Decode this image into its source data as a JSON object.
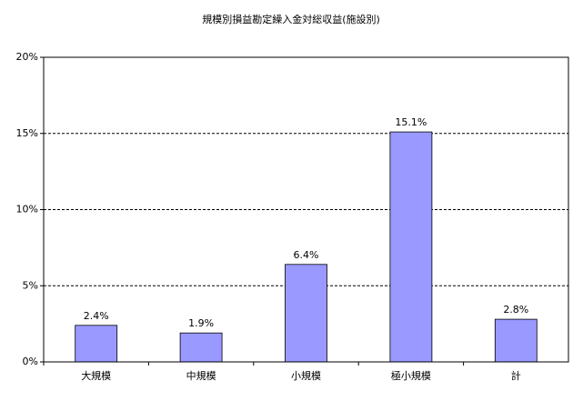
{
  "chart_data": {
    "type": "bar",
    "title": "規模別損益勘定繰入金対総収益(施設別)",
    "categories": [
      "大規模",
      "中規模",
      "小規模",
      "極小規模",
      "計"
    ],
    "values": [
      2.4,
      1.9,
      6.4,
      15.1,
      2.8
    ],
    "value_labels": [
      "2.4%",
      "1.9%",
      "6.4%",
      "15.1%",
      "2.8%"
    ],
    "color": "#9999ff",
    "ylim": [
      0,
      20
    ],
    "yticks": [
      {
        "value": 0,
        "label": "0%"
      },
      {
        "value": 5,
        "label": "5%"
      },
      {
        "value": 10,
        "label": "10%"
      },
      {
        "value": 15,
        "label": "15%"
      },
      {
        "value": 20,
        "label": "20%"
      }
    ],
    "grid": true
  }
}
